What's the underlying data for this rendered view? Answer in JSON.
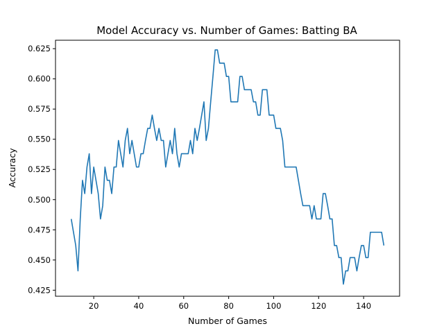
{
  "chart_data": {
    "type": "line",
    "title": "Model Accuracy vs. Number of Games: Batting BA",
    "xlabel": "Number of Games",
    "ylabel": "Accuracy",
    "xlim": [
      3,
      156
    ],
    "ylim": [
      0.42,
      0.632
    ],
    "xticks": [
      20,
      40,
      60,
      80,
      100,
      120,
      140
    ],
    "yticks": [
      0.425,
      0.45,
      0.475,
      0.5,
      0.525,
      0.55,
      0.575,
      0.6,
      0.625
    ],
    "ytick_labels": [
      "0.425",
      "0.450",
      "0.475",
      "0.500",
      "0.525",
      "0.550",
      "0.575",
      "0.600",
      "0.625"
    ],
    "grid": false,
    "legend": "none",
    "series": [
      {
        "color": "#1f77b4",
        "x": [
          10,
          11,
          12,
          13,
          14,
          15,
          16,
          17,
          18,
          19,
          20,
          21,
          22,
          23,
          24,
          25,
          26,
          27,
          28,
          29,
          30,
          31,
          32,
          33,
          34,
          35,
          36,
          37,
          38,
          39,
          40,
          41,
          42,
          43,
          44,
          45,
          46,
          47,
          48,
          49,
          50,
          51,
          52,
          53,
          54,
          55,
          56,
          57,
          58,
          59,
          60,
          61,
          62,
          63,
          64,
          65,
          66,
          67,
          68,
          69,
          70,
          71,
          72,
          73,
          74,
          75,
          76,
          77,
          78,
          79,
          80,
          81,
          82,
          83,
          84,
          85,
          86,
          87,
          88,
          89,
          90,
          91,
          92,
          93,
          94,
          95,
          96,
          97,
          98,
          99,
          100,
          101,
          102,
          103,
          104,
          105,
          106,
          107,
          108,
          109,
          110,
          111,
          112,
          113,
          114,
          115,
          116,
          117,
          118,
          119,
          120,
          121,
          122,
          123,
          124,
          125,
          126,
          127,
          128,
          129,
          130,
          131,
          132,
          133,
          134,
          135,
          136,
          137,
          138,
          139,
          140,
          141,
          142,
          143,
          144,
          145,
          146,
          147,
          148,
          149
        ],
        "values": [
          0.484,
          0.473,
          0.462,
          0.441,
          0.484,
          0.516,
          0.505,
          0.527,
          0.538,
          0.505,
          0.527,
          0.516,
          0.505,
          0.484,
          0.495,
          0.527,
          0.516,
          0.516,
          0.505,
          0.527,
          0.527,
          0.549,
          0.538,
          0.527,
          0.549,
          0.559,
          0.538,
          0.549,
          0.538,
          0.527,
          0.527,
          0.538,
          0.538,
          0.549,
          0.559,
          0.559,
          0.57,
          0.559,
          0.549,
          0.559,
          0.549,
          0.549,
          0.527,
          0.538,
          0.549,
          0.538,
          0.559,
          0.538,
          0.527,
          0.538,
          0.538,
          0.538,
          0.538,
          0.549,
          0.538,
          0.559,
          0.549,
          0.559,
          0.57,
          0.581,
          0.549,
          0.559,
          0.581,
          0.602,
          0.624,
          0.624,
          0.613,
          0.613,
          0.613,
          0.602,
          0.602,
          0.581,
          0.581,
          0.581,
          0.581,
          0.602,
          0.602,
          0.591,
          0.591,
          0.591,
          0.591,
          0.581,
          0.581,
          0.57,
          0.57,
          0.591,
          0.591,
          0.591,
          0.57,
          0.57,
          0.57,
          0.559,
          0.559,
          0.559,
          0.549,
          0.527,
          0.527,
          0.527,
          0.527,
          0.527,
          0.527,
          0.516,
          0.505,
          0.495,
          0.495,
          0.495,
          0.495,
          0.484,
          0.495,
          0.484,
          0.484,
          0.484,
          0.505,
          0.505,
          0.495,
          0.484,
          0.484,
          0.462,
          0.462,
          0.452,
          0.452,
          0.43,
          0.441,
          0.441,
          0.452,
          0.452,
          0.452,
          0.441,
          0.452,
          0.462,
          0.462,
          0.452,
          0.452,
          0.473,
          0.473,
          0.473,
          0.473,
          0.473,
          0.473,
          0.462
        ]
      }
    ]
  }
}
